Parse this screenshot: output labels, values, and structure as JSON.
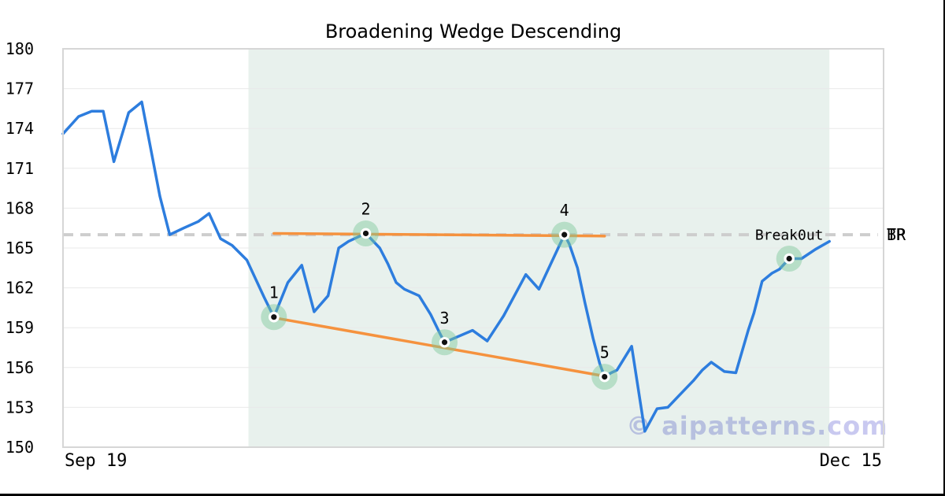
{
  "page": {
    "background": "#ffffff",
    "edge_border_color": "#000000"
  },
  "chart_data": {
    "type": "line",
    "title": "Broadening Wedge Descending",
    "xlabel": "",
    "ylabel": "",
    "ylim": [
      150,
      180
    ],
    "yticks": [
      180,
      177,
      174,
      171,
      168,
      165,
      162,
      159,
      156,
      153,
      150
    ],
    "xticks": [
      {
        "label": "Sep 19",
        "frac": 0.04
      },
      {
        "label": "Dec 15",
        "frac": 0.96
      }
    ],
    "grid": "horizontal",
    "grid_color": "#e9e9e9",
    "spine_color": "#d6d6d6",
    "series": [
      {
        "name": "price",
        "color": "#2d7dde",
        "points": [
          [
            0.0,
            173.6
          ],
          [
            0.019,
            174.9
          ],
          [
            0.035,
            175.3
          ],
          [
            0.049,
            175.3
          ],
          [
            0.062,
            171.5
          ],
          [
            0.08,
            175.2
          ],
          [
            0.096,
            176.0
          ],
          [
            0.118,
            168.9
          ],
          [
            0.13,
            166.0
          ],
          [
            0.147,
            166.5
          ],
          [
            0.165,
            167.0
          ],
          [
            0.178,
            167.6
          ],
          [
            0.192,
            165.7
          ],
          [
            0.206,
            165.2
          ],
          [
            0.224,
            164.1
          ],
          [
            0.245,
            161.3
          ],
          [
            0.257,
            159.8
          ],
          [
            0.274,
            162.4
          ],
          [
            0.291,
            163.7
          ],
          [
            0.306,
            160.2
          ],
          [
            0.323,
            161.4
          ],
          [
            0.336,
            165.0
          ],
          [
            0.348,
            165.5
          ],
          [
            0.369,
            166.1
          ],
          [
            0.386,
            165.0
          ],
          [
            0.396,
            163.8
          ],
          [
            0.406,
            162.4
          ],
          [
            0.416,
            161.9
          ],
          [
            0.434,
            161.4
          ],
          [
            0.448,
            160.0
          ],
          [
            0.459,
            158.6
          ],
          [
            0.465,
            157.9
          ],
          [
            0.499,
            158.8
          ],
          [
            0.517,
            158.0
          ],
          [
            0.537,
            159.9
          ],
          [
            0.564,
            163.0
          ],
          [
            0.58,
            161.9
          ],
          [
            0.611,
            166.0
          ],
          [
            0.617,
            165.3
          ],
          [
            0.627,
            163.5
          ],
          [
            0.636,
            160.9
          ],
          [
            0.646,
            158.2
          ],
          [
            0.654,
            156.3
          ],
          [
            0.66,
            155.3
          ],
          [
            0.668,
            155.6
          ],
          [
            0.675,
            155.8
          ],
          [
            0.693,
            157.6
          ],
          [
            0.709,
            151.2
          ],
          [
            0.724,
            152.9
          ],
          [
            0.737,
            153.0
          ],
          [
            0.751,
            153.9
          ],
          [
            0.768,
            155.0
          ],
          [
            0.779,
            155.8
          ],
          [
            0.79,
            156.4
          ],
          [
            0.806,
            155.7
          ],
          [
            0.82,
            155.6
          ],
          [
            0.835,
            158.8
          ],
          [
            0.842,
            160.1
          ],
          [
            0.852,
            162.5
          ],
          [
            0.864,
            163.1
          ],
          [
            0.873,
            163.4
          ],
          [
            0.885,
            164.2
          ],
          [
            0.9,
            164.2
          ],
          [
            0.917,
            164.9
          ],
          [
            0.934,
            165.5
          ]
        ]
      }
    ],
    "pattern_zone": {
      "from": 0.226,
      "to": 0.934,
      "color": "rgba(25,120,75,0.10)"
    },
    "trendlines": [
      {
        "name": "upper",
        "color": "#f5923e",
        "points": [
          [
            0.257,
            166.1
          ],
          [
            0.66,
            165.9
          ]
        ]
      },
      {
        "name": "lower",
        "color": "#f5923e",
        "points": [
          [
            0.257,
            159.75
          ],
          [
            0.66,
            155.35
          ]
        ]
      }
    ],
    "target_line": {
      "price": 166.0,
      "style": "dashed",
      "color": "#cdcdcd",
      "span": [
        0,
        0.993
      ],
      "labels": [
        "TP",
        "BR"
      ]
    },
    "pattern_points": [
      {
        "label": "1",
        "x": 0.257,
        "price": 159.8
      },
      {
        "label": "2",
        "x": 0.369,
        "price": 166.1
      },
      {
        "label": "3",
        "x": 0.465,
        "price": 157.9
      },
      {
        "label": "4",
        "x": 0.611,
        "price": 166.0
      },
      {
        "label": "5",
        "x": 0.66,
        "price": 155.3
      }
    ],
    "breakout_point": {
      "label": "Break0ut",
      "x": 0.885,
      "price": 164.2
    },
    "marker_halo_color": "rgba(125,199,154,0.45)",
    "marker_dot_color": "#111111",
    "watermark": "© aipatterns.com",
    "watermark_color": "#c9c9f0"
  }
}
